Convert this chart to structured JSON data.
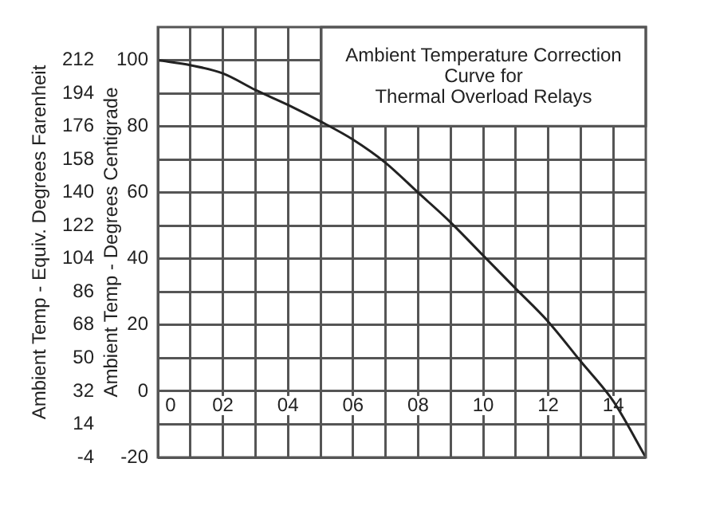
{
  "chart_data": {
    "type": "line",
    "title": "Ambient Temperature Correction\nCurve for\nThermal Overload Relays",
    "ylabel": "Ambient Temp - Degrees Centigrade",
    "y2label": "Ambient Temp - Equiv. Degrees Farenheit",
    "x": [
      0,
      1,
      2,
      3,
      4,
      5,
      6,
      7,
      8,
      9,
      10,
      11,
      12,
      13,
      14,
      15
    ],
    "series": [
      {
        "color": "#222222",
        "values": [
          100,
          98.5,
          96,
          91,
          86.5,
          81.5,
          76,
          69,
          60,
          51,
          41,
          31,
          21,
          9,
          -3,
          -20
        ]
      }
    ],
    "xlim": [
      0,
      15
    ],
    "xticks": [
      0,
      {
        "value": 1,
        "label": null
      },
      {
        "value": 2,
        "label": "02"
      },
      {
        "value": 3,
        "label": null
      },
      {
        "value": 4,
        "label": "04"
      },
      {
        "value": 5,
        "label": null
      },
      {
        "value": 6,
        "label": "06"
      },
      {
        "value": 7,
        "label": null
      },
      {
        "value": 8,
        "label": "08"
      },
      {
        "value": 9,
        "label": null
      },
      10,
      {
        "value": 11,
        "label": null
      },
      12,
      {
        "value": 13,
        "label": null
      },
      14
    ],
    "ylim": [
      -20,
      110
    ],
    "yticks": [
      -20,
      {
        "value": -10,
        "label": null
      },
      0,
      {
        "value": 10,
        "label": null
      },
      20,
      {
        "value": 30,
        "label": null
      },
      40,
      {
        "value": 50,
        "label": null
      },
      60,
      {
        "value": 70,
        "label": null
      },
      80,
      {
        "value": 90,
        "label": null
      },
      100
    ],
    "y2lim": [
      -4,
      230
    ],
    "y2ticks": [
      -4,
      14,
      32,
      50,
      68,
      86,
      104,
      122,
      140,
      158,
      176,
      194,
      212
    ],
    "grid": true,
    "marker": "none",
    "line_style": "solid",
    "legend": false
  }
}
